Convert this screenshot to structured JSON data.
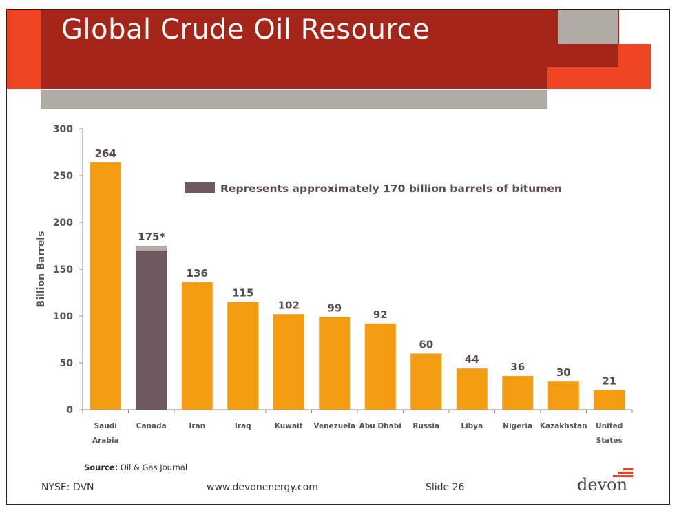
{
  "slide": {
    "title": "Global Crude Oil Resource",
    "colors": {
      "dark_red": "#a52519",
      "orange_red": "#f04523",
      "gray": "#b0aca5",
      "bar_orange": "#f39c12",
      "bar_gray": "#6e5a5e",
      "bar_light_gray": "#b0aca5"
    }
  },
  "chart_data": {
    "type": "bar",
    "title": "",
    "ylabel": "Billion Barrels",
    "xlabel": "",
    "ylim": [
      0,
      300
    ],
    "yticks": [
      "0",
      "50",
      "100",
      "150",
      "200",
      "250",
      "300"
    ],
    "categories": [
      [
        "Saudi",
        "Arabia"
      ],
      [
        "Canada"
      ],
      [
        "Iran"
      ],
      [
        "Iraq"
      ],
      [
        "Kuwait"
      ],
      [
        "Venezuela"
      ],
      [
        "Abu Dhabi"
      ],
      [
        "Russia"
      ],
      [
        "Libya"
      ],
      [
        "Nigeria"
      ],
      [
        "Kazakhstan"
      ],
      [
        "United",
        "States"
      ]
    ],
    "values": [
      264,
      175,
      136,
      115,
      102,
      99,
      92,
      60,
      44,
      36,
      30,
      21
    ],
    "value_labels": [
      "264",
      "175*",
      "136",
      "115",
      "102",
      "99",
      "92",
      "60",
      "44",
      "36",
      "30",
      "21"
    ],
    "bitumen_portion": {
      "category_index": 1,
      "value": 170
    },
    "legend": {
      "label": "Represents approximately 170 billion barrels of bitumen",
      "position": "top-center"
    },
    "grid": false
  },
  "source": {
    "label": "Source:",
    "text": "Oil & Gas Journal"
  },
  "footer": {
    "ticker": "NYSE: DVN",
    "website": "www.devonenergy.com",
    "slide_number": "Slide 26",
    "logo": "devon"
  }
}
